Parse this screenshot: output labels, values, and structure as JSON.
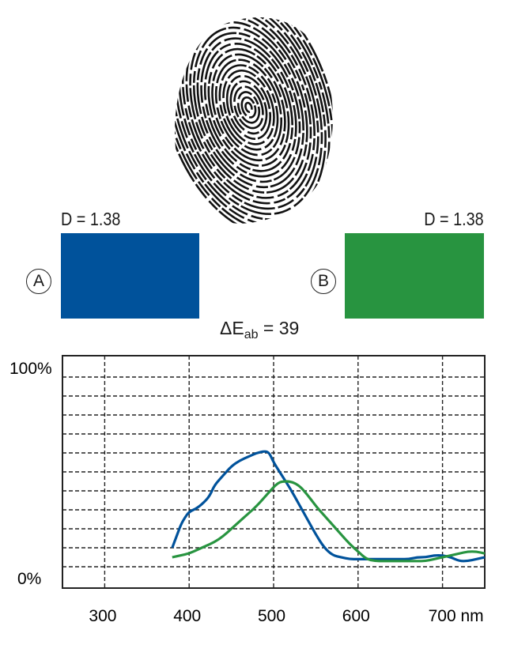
{
  "samples": {
    "a": {
      "marker": "A",
      "density_label": "D = 1.38",
      "color": "#00529b"
    },
    "b": {
      "marker": "B",
      "density_label": "D = 1.38",
      "color": "#289440"
    }
  },
  "delta": {
    "symbol": "ΔE",
    "subscript": "ab",
    "value": "= 39"
  },
  "chart_data": {
    "type": "line",
    "xlim": [
      250,
      750
    ],
    "ylim": [
      0,
      100
    ],
    "x_ticks": [
      300,
      400,
      500,
      600,
      700
    ],
    "x_tick_labels": [
      "300",
      "400",
      "500",
      "600",
      "700 nm"
    ],
    "y_tick_labels": {
      "top": "100%",
      "bottom": "0%"
    },
    "grid": true,
    "series": [
      {
        "color": "#00529b",
        "points": [
          [
            380,
            10
          ],
          [
            385,
            16
          ],
          [
            390,
            22
          ],
          [
            395,
            26
          ],
          [
            400,
            29
          ],
          [
            410,
            31
          ],
          [
            420,
            35
          ],
          [
            425,
            38
          ],
          [
            430,
            43
          ],
          [
            440,
            48
          ],
          [
            450,
            53
          ],
          [
            460,
            56
          ],
          [
            470,
            58
          ],
          [
            480,
            60
          ],
          [
            490,
            61
          ],
          [
            495,
            60
          ],
          [
            500,
            55
          ],
          [
            510,
            48
          ],
          [
            520,
            41
          ],
          [
            530,
            33
          ],
          [
            540,
            25
          ],
          [
            550,
            17
          ],
          [
            560,
            10
          ],
          [
            570,
            6
          ],
          [
            580,
            5
          ],
          [
            590,
            4
          ],
          [
            600,
            4
          ],
          [
            610,
            4
          ],
          [
            620,
            4
          ],
          [
            630,
            4
          ],
          [
            640,
            4
          ],
          [
            650,
            4
          ],
          [
            660,
            4
          ],
          [
            670,
            5
          ],
          [
            680,
            5
          ],
          [
            690,
            6
          ],
          [
            700,
            6
          ],
          [
            710,
            5
          ],
          [
            720,
            3
          ],
          [
            730,
            3
          ],
          [
            740,
            4
          ],
          [
            750,
            5
          ]
        ]
      },
      {
        "color": "#289440",
        "points": [
          [
            380,
            5
          ],
          [
            390,
            6
          ],
          [
            400,
            7
          ],
          [
            410,
            9
          ],
          [
            420,
            11
          ],
          [
            430,
            13
          ],
          [
            440,
            16
          ],
          [
            450,
            20
          ],
          [
            460,
            24
          ],
          [
            470,
            28
          ],
          [
            480,
            32
          ],
          [
            490,
            37
          ],
          [
            500,
            42
          ],
          [
            505,
            44
          ],
          [
            510,
            45
          ],
          [
            520,
            45
          ],
          [
            530,
            43
          ],
          [
            540,
            38
          ],
          [
            550,
            32
          ],
          [
            560,
            27
          ],
          [
            570,
            22
          ],
          [
            580,
            17
          ],
          [
            590,
            12
          ],
          [
            600,
            8
          ],
          [
            610,
            4
          ],
          [
            620,
            3
          ],
          [
            630,
            3
          ],
          [
            640,
            3
          ],
          [
            650,
            3
          ],
          [
            660,
            3
          ],
          [
            670,
            3
          ],
          [
            680,
            3
          ],
          [
            690,
            4
          ],
          [
            700,
            5
          ],
          [
            710,
            6
          ],
          [
            720,
            7
          ],
          [
            730,
            8
          ],
          [
            740,
            8
          ],
          [
            750,
            7
          ]
        ]
      }
    ]
  }
}
